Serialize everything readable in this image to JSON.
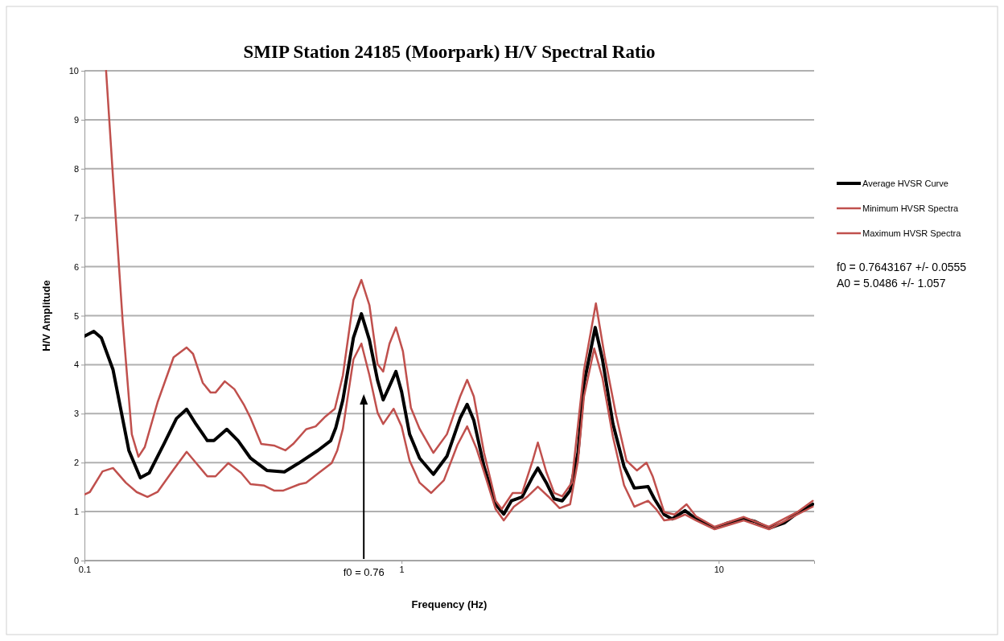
{
  "chart_data": {
    "type": "line",
    "title": "SMIP Station 24185 (Moorpark) H/V Spectral Ratio",
    "xlabel": "Frequency (Hz)",
    "ylabel": "H/V Amplitude",
    "log": "x",
    "xlim": [
      0.1,
      20
    ],
    "xticks": [
      0.1,
      1,
      10
    ],
    "ylim": [
      0,
      10
    ],
    "yticks": [
      0,
      1,
      2,
      3,
      4,
      5,
      6,
      7,
      8,
      9,
      10
    ],
    "grid": "y",
    "legend": "right",
    "series": [
      {
        "name": "Average HVSR Curve",
        "color": "#000000",
        "x": [
          0.1,
          0.107,
          0.113,
          0.123,
          0.138,
          0.15,
          0.16,
          0.178,
          0.195,
          0.21,
          0.225,
          0.244,
          0.256,
          0.281,
          0.305,
          0.334,
          0.376,
          0.427,
          0.474,
          0.545,
          0.598,
          0.62,
          0.653,
          0.705,
          0.747,
          0.792,
          0.84,
          0.875,
          0.916,
          0.96,
          1.0,
          1.06,
          1.14,
          1.26,
          1.39,
          1.53,
          1.61,
          1.69,
          1.82,
          1.98,
          2.1,
          2.22,
          2.4,
          2.59,
          2.69,
          2.86,
          3.03,
          3.21,
          3.4,
          3.6,
          3.76,
          4.08,
          4.3,
          4.64,
          5.03,
          5.42,
          5.99,
          6.27,
          6.73,
          7.13,
          7.83,
          8.49,
          9.71,
          10.7,
          12.0,
          13.0,
          14.4,
          16.1,
          17.7,
          19.8
        ],
        "values": [
          4.58,
          4.68,
          4.55,
          3.9,
          2.25,
          1.69,
          1.79,
          2.38,
          2.9,
          3.09,
          2.78,
          2.45,
          2.45,
          2.68,
          2.45,
          2.09,
          1.84,
          1.81,
          1.99,
          2.25,
          2.45,
          2.71,
          3.28,
          4.55,
          5.04,
          4.5,
          3.68,
          3.28,
          3.56,
          3.86,
          3.45,
          2.58,
          2.09,
          1.76,
          2.13,
          2.91,
          3.19,
          2.86,
          1.92,
          1.15,
          0.95,
          1.22,
          1.3,
          1.71,
          1.89,
          1.59,
          1.26,
          1.22,
          1.43,
          2.2,
          3.61,
          4.76,
          4.11,
          2.79,
          1.92,
          1.48,
          1.51,
          1.26,
          0.94,
          0.85,
          1.02,
          0.85,
          0.66,
          0.77,
          0.85,
          0.8,
          0.66,
          0.77,
          0.97,
          1.15
        ]
      },
      {
        "name": "Minimum HVSR Spectra",
        "color": "#c0504d",
        "x": [
          0.1,
          0.104,
          0.114,
          0.123,
          0.135,
          0.146,
          0.158,
          0.17,
          0.191,
          0.21,
          0.225,
          0.244,
          0.259,
          0.284,
          0.312,
          0.334,
          0.369,
          0.396,
          0.424,
          0.477,
          0.5,
          0.548,
          0.602,
          0.627,
          0.653,
          0.705,
          0.747,
          0.792,
          0.84,
          0.875,
          0.944,
          1.0,
          1.06,
          1.14,
          1.24,
          1.36,
          1.5,
          1.61,
          1.72,
          1.82,
          1.98,
          2.1,
          2.26,
          2.5,
          2.69,
          2.9,
          3.15,
          3.4,
          3.6,
          3.76,
          4.05,
          4.3,
          4.64,
          5.03,
          5.42,
          5.99,
          6.35,
          6.73,
          7.26,
          7.83,
          8.49,
          9.71,
          12.0,
          14.4,
          17.7,
          19.8
        ],
        "values": [
          1.35,
          1.4,
          1.82,
          1.89,
          1.59,
          1.4,
          1.3,
          1.4,
          1.86,
          2.22,
          1.99,
          1.72,
          1.72,
          1.99,
          1.79,
          1.56,
          1.53,
          1.43,
          1.43,
          1.56,
          1.59,
          1.79,
          1.99,
          2.25,
          2.69,
          4.11,
          4.43,
          3.78,
          3.02,
          2.79,
          3.1,
          2.74,
          2.04,
          1.59,
          1.38,
          1.64,
          2.36,
          2.74,
          2.3,
          1.81,
          1.05,
          0.82,
          1.1,
          1.31,
          1.51,
          1.31,
          1.07,
          1.15,
          2.04,
          3.35,
          4.33,
          3.73,
          2.53,
          1.54,
          1.1,
          1.22,
          1.05,
          0.82,
          0.85,
          0.94,
          0.82,
          0.64,
          0.82,
          0.64,
          0.94,
          1.1
        ]
      },
      {
        "name": "Maximum HVSR Spectra",
        "color": "#c0504d",
        "x": [
          0.117,
          0.123,
          0.132,
          0.141,
          0.148,
          0.155,
          0.17,
          0.191,
          0.21,
          0.22,
          0.236,
          0.25,
          0.259,
          0.277,
          0.297,
          0.319,
          0.334,
          0.361,
          0.396,
          0.43,
          0.455,
          0.5,
          0.536,
          0.575,
          0.616,
          0.653,
          0.705,
          0.747,
          0.792,
          0.84,
          0.875,
          0.916,
          0.96,
          1.01,
          1.07,
          1.14,
          1.26,
          1.39,
          1.53,
          1.61,
          1.69,
          1.82,
          1.98,
          2.07,
          2.24,
          2.4,
          2.59,
          2.69,
          2.86,
          3.03,
          3.21,
          3.44,
          3.76,
          4.1,
          4.37,
          4.75,
          5.12,
          5.52,
          5.92,
          6.2,
          6.73,
          7.26,
          7.92,
          8.49,
          9.71,
          12.0,
          14.4,
          17.7,
          19.8
        ],
        "values": [
          10,
          7.83,
          4.88,
          2.58,
          2.12,
          2.32,
          3.23,
          4.15,
          4.35,
          4.22,
          3.63,
          3.43,
          3.43,
          3.66,
          3.5,
          3.17,
          2.91,
          2.38,
          2.35,
          2.25,
          2.38,
          2.68,
          2.74,
          2.94,
          3.1,
          3.78,
          5.32,
          5.73,
          5.21,
          4.01,
          3.86,
          4.43,
          4.76,
          4.27,
          3.12,
          2.69,
          2.2,
          2.58,
          3.35,
          3.69,
          3.35,
          2.2,
          1.22,
          1.05,
          1.38,
          1.38,
          2.04,
          2.41,
          1.81,
          1.38,
          1.31,
          1.59,
          3.89,
          5.25,
          4.17,
          2.96,
          2.04,
          1.84,
          2.0,
          1.71,
          0.99,
          0.94,
          1.15,
          0.9,
          0.69,
          0.89,
          0.69,
          0.99,
          1.22
        ]
      }
    ],
    "ref_lines": [
      {
        "axis": "x",
        "value": 0.76,
        "label": "f0 = 0.76",
        "color": "#000000"
      }
    ],
    "annotations": [
      "f0 = 0.7643167 +/- 0.0555",
      "A0 = 5.0486 +/- 1.057"
    ]
  }
}
